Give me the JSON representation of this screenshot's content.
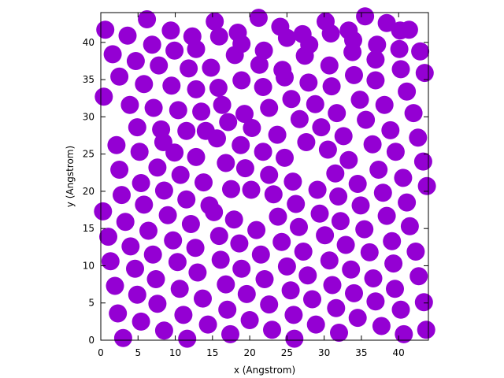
{
  "chart_data": {
    "type": "scatter",
    "xlabel": "x (Angstrom)",
    "ylabel": "y (Angstrom)",
    "xlim": [
      0,
      44
    ],
    "ylim": [
      0,
      44
    ],
    "xticks": [
      0,
      5,
      10,
      15,
      20,
      25,
      30,
      35,
      40
    ],
    "yticks": [
      0,
      5,
      10,
      15,
      20,
      25,
      30,
      35,
      40
    ],
    "grid": false,
    "legend": "none",
    "marker_color": "#9400d3",
    "marker_shape": "filled-circle",
    "points": [
      [
        3,
        0.3
      ],
      [
        11.6,
        0.2
      ],
      [
        17.4,
        0.8
      ],
      [
        26,
        0.2
      ],
      [
        32,
        1
      ],
      [
        40.7,
        0.8
      ],
      [
        43.7,
        1.4
      ],
      [
        2.3,
        3.6
      ],
      [
        5.4,
        2.5
      ],
      [
        8.5,
        1.3
      ],
      [
        11.1,
        3.4
      ],
      [
        14.4,
        2.1
      ],
      [
        17,
        4.1
      ],
      [
        20,
        2.7
      ],
      [
        23,
        1.4
      ],
      [
        25.9,
        3.4
      ],
      [
        28.9,
        2.1
      ],
      [
        31.6,
        4.3
      ],
      [
        34.5,
        3
      ],
      [
        37.7,
        1.9
      ],
      [
        40.3,
        4.1
      ],
      [
        1.9,
        7.3
      ],
      [
        4.9,
        6.1
      ],
      [
        7.6,
        4.9
      ],
      [
        10.6,
        6.9
      ],
      [
        13.7,
        5.6
      ],
      [
        16.8,
        7.5
      ],
      [
        19.6,
        6.2
      ],
      [
        22.6,
        4.8
      ],
      [
        25.5,
        6.7
      ],
      [
        28.4,
        5.5
      ],
      [
        31.1,
        7.4
      ],
      [
        34,
        6.3
      ],
      [
        36.9,
        5.2
      ],
      [
        39.5,
        6.9
      ],
      [
        43.4,
        5.1
      ],
      [
        1.3,
        10.6
      ],
      [
        4.6,
        9.6
      ],
      [
        7.4,
        8.2
      ],
      [
        10.3,
        10.5
      ],
      [
        13,
        9.1
      ],
      [
        16.1,
        10.8
      ],
      [
        18.9,
        9.6
      ],
      [
        22,
        8.2
      ],
      [
        25,
        9.9
      ],
      [
        27.8,
        8.7
      ],
      [
        30.7,
        10.7
      ],
      [
        33.6,
        9.5
      ],
      [
        36.6,
        8.3
      ],
      [
        39.3,
        10.3
      ],
      [
        42.7,
        8.6
      ],
      [
        1,
        13.9
      ],
      [
        4,
        12.6
      ],
      [
        7,
        11.5
      ],
      [
        9.7,
        13.4
      ],
      [
        12.7,
        12.4
      ],
      [
        15.9,
        14
      ],
      [
        18.6,
        13
      ],
      [
        21.5,
        11.5
      ],
      [
        24.3,
        13.2
      ],
      [
        27.2,
        11.9
      ],
      [
        30.1,
        14.1
      ],
      [
        32.9,
        12.8
      ],
      [
        36.1,
        11.8
      ],
      [
        39.1,
        13.3
      ],
      [
        42.3,
        11.9
      ],
      [
        0.3,
        17.3
      ],
      [
        3.3,
        15.9
      ],
      [
        6.4,
        14.7
      ],
      [
        9,
        16.8
      ],
      [
        12.1,
        15.6
      ],
      [
        15.2,
        17.2
      ],
      [
        17.9,
        16.2
      ],
      [
        20.9,
        14.8
      ],
      [
        23.8,
        16.6
      ],
      [
        26.6,
        15.2
      ],
      [
        29.4,
        17
      ],
      [
        32.2,
        16
      ],
      [
        35.4,
        14.9
      ],
      [
        38.4,
        16.7
      ],
      [
        41.5,
        15.3
      ],
      [
        2.8,
        19.5
      ],
      [
        5.8,
        18.2
      ],
      [
        8.5,
        20.1
      ],
      [
        11.5,
        18.9
      ],
      [
        14.6,
        18.1
      ],
      [
        17.5,
        20.3
      ],
      [
        20.2,
        20.2
      ],
      [
        23.2,
        19.6
      ],
      [
        26.2,
        18.3
      ],
      [
        29.1,
        20.2
      ],
      [
        31.9,
        19.3
      ],
      [
        34.9,
        18.1
      ],
      [
        37.9,
        19.8
      ],
      [
        41.1,
        18.5
      ],
      [
        43.8,
        20.7
      ],
      [
        2.5,
        22.9
      ],
      [
        5.4,
        21.1
      ],
      [
        7.6,
        23.2
      ],
      [
        10.7,
        22.2
      ],
      [
        13.8,
        21.2
      ],
      [
        16.8,
        23.8
      ],
      [
        19.4,
        23.1
      ],
      [
        22.6,
        22.2
      ],
      [
        25.8,
        21.3
      ],
      [
        31.5,
        22.4
      ],
      [
        34.5,
        21
      ],
      [
        37.3,
        22.9
      ],
      [
        40.6,
        21.8
      ],
      [
        43.3,
        24
      ],
      [
        2.1,
        26.2
      ],
      [
        5.2,
        25.3
      ],
      [
        8.4,
        26.6
      ],
      [
        9.9,
        25.2
      ],
      [
        12.8,
        24.6
      ],
      [
        15.6,
        27.1
      ],
      [
        18.8,
        26.2
      ],
      [
        21.8,
        25.3
      ],
      [
        24.7,
        24.5
      ],
      [
        27.6,
        26.6
      ],
      [
        30.5,
        25.6
      ],
      [
        33.3,
        24.2
      ],
      [
        36.5,
        26.3
      ],
      [
        39.6,
        25.3
      ],
      [
        42.6,
        27.2
      ],
      [
        4.9,
        28.6
      ],
      [
        8.1,
        28.3
      ],
      [
        11.5,
        28.1
      ],
      [
        14.1,
        28.1
      ],
      [
        17.1,
        29.3
      ],
      [
        20.3,
        28.5
      ],
      [
        23.7,
        27.6
      ],
      [
        26.7,
        29.7
      ],
      [
        29.6,
        28.6
      ],
      [
        32.6,
        27.4
      ],
      [
        35.6,
        29.6
      ],
      [
        38.9,
        28.2
      ],
      [
        42,
        30.5
      ],
      [
        0.4,
        32.7
      ],
      [
        3.9,
        31.6
      ],
      [
        7.1,
        31.2
      ],
      [
        10.4,
        30.9
      ],
      [
        13.5,
        30.7
      ],
      [
        16.3,
        31.6
      ],
      [
        19.3,
        30.4
      ],
      [
        22.6,
        31.2
      ],
      [
        25.6,
        32.4
      ],
      [
        28.8,
        31.7
      ],
      [
        31.7,
        30.5
      ],
      [
        34.8,
        32.3
      ],
      [
        38.1,
        31.6
      ],
      [
        41.1,
        33.4
      ],
      [
        2.5,
        35.4
      ],
      [
        5.8,
        34.4
      ],
      [
        9.5,
        34.2
      ],
      [
        12.8,
        33.7
      ],
      [
        15.8,
        33.9
      ],
      [
        18.9,
        34.9
      ],
      [
        21.8,
        34
      ],
      [
        24.7,
        35.3
      ],
      [
        27.9,
        34.6
      ],
      [
        31,
        34.1
      ],
      [
        34,
        35.6
      ],
      [
        36.9,
        34.9
      ],
      [
        40.3,
        36.4
      ],
      [
        43.5,
        35.9
      ],
      [
        1.6,
        38.4
      ],
      [
        4.7,
        37.5
      ],
      [
        7.8,
        36.9
      ],
      [
        11.8,
        36.5
      ],
      [
        14.8,
        36.6
      ],
      [
        18,
        38.3
      ],
      [
        21.3,
        37
      ],
      [
        24.4,
        36.3
      ],
      [
        27.4,
        38.2
      ],
      [
        30.7,
        36.9
      ],
      [
        33.8,
        38.7
      ],
      [
        36.9,
        37.7
      ],
      [
        40.1,
        39.1
      ],
      [
        42.9,
        38.8
      ],
      [
        0.6,
        41.7
      ],
      [
        3.6,
        40.9
      ],
      [
        6.9,
        39.7
      ],
      [
        9.9,
        38.9
      ],
      [
        12.8,
        39.1
      ],
      [
        15.9,
        40.8
      ],
      [
        18.9,
        39.8
      ],
      [
        21.9,
        38.9
      ],
      [
        25,
        40.6
      ],
      [
        28,
        39.7
      ],
      [
        30.9,
        41.2
      ],
      [
        33.9,
        40.3
      ],
      [
        37.1,
        39.7
      ],
      [
        40.2,
        41.6
      ],
      [
        6.2,
        43.1
      ],
      [
        9.4,
        41.6
      ],
      [
        12.3,
        40.8
      ],
      [
        15.3,
        42.8
      ],
      [
        18.4,
        41.3
      ],
      [
        21.2,
        43.3
      ],
      [
        24.1,
        42.1
      ],
      [
        27.1,
        41.1
      ],
      [
        30.2,
        42.8
      ],
      [
        33.3,
        41.6
      ],
      [
        35.5,
        43.5
      ],
      [
        38.4,
        42.6
      ],
      [
        41.4,
        41.7
      ]
    ]
  }
}
